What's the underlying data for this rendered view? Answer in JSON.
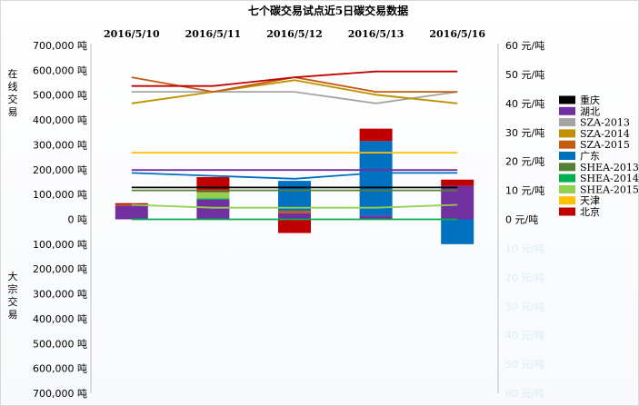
{
  "chart_data": {
    "type": "bar",
    "title": "七个碳交易试点近5日碳交易数据",
    "categories": [
      "2016/5/10",
      "2016/5/11",
      "2016/5/12",
      "2016/5/13",
      "2016/5/16"
    ],
    "y_left": {
      "ticks": [
        "700,000 吨",
        "600,000 吨",
        "500,000 吨",
        "400,000 吨",
        "300,000 吨",
        "200,000 吨",
        "100,000 吨",
        "0 吨",
        "100,000 吨",
        "200,000 吨",
        "300,000 吨",
        "400,000 吨",
        "500,000 吨",
        "600,000 吨",
        "700,000 吨"
      ],
      "range": [
        -700000,
        700000
      ],
      "upper_label": "在线交易",
      "lower_label": "大宗交易"
    },
    "y_right": {
      "ticks": [
        "60 元/吨",
        "50 元/吨",
        "40 元/吨",
        "30 元/吨",
        "20 元/吨",
        "10 元/吨",
        "0 元/吨",
        "10 元/吨",
        "20 元/吨",
        "30 元/吨",
        "40 元/吨",
        "50 元/吨",
        "60 元/吨"
      ],
      "range": [
        -60,
        60
      ]
    },
    "series": [
      {
        "name": "重庆",
        "color": "#000000",
        "bars": [
          0,
          0,
          0,
          0,
          0
        ],
        "prices": [
          11,
          11,
          11,
          11,
          11
        ]
      },
      {
        "name": "湖北",
        "color": "#7030a0",
        "bars": [
          55000,
          80000,
          25000,
          15000,
          135000
        ],
        "prices": [
          17,
          17,
          17,
          17,
          17
        ]
      },
      {
        "name": "SZA-2013",
        "color": "#a5a5a5",
        "bars": [
          0,
          0,
          0,
          0,
          0
        ],
        "prices": [
          44,
          44,
          44,
          40,
          44
        ]
      },
      {
        "name": "SZA-2014",
        "color": "#bf9000",
        "bars": [
          0,
          0,
          0,
          0,
          0
        ],
        "prices": [
          40,
          44,
          48,
          43,
          40
        ]
      },
      {
        "name": "SZA-2015",
        "color": "#c55a11",
        "bars": [
          5000,
          0,
          10000,
          0,
          0
        ],
        "prices": [
          49,
          44,
          49,
          44,
          44
        ]
      },
      {
        "name": "广东",
        "color": "#0070c0",
        "bars": [
          0,
          0,
          120000,
          300000,
          -100000
        ],
        "prices": [
          16,
          15,
          14,
          16,
          16
        ]
      },
      {
        "name": "SHEA-2013",
        "color": "#548235",
        "bars": [
          0,
          0,
          0,
          0,
          0
        ],
        "prices": [
          10,
          10,
          10,
          10,
          10
        ]
      },
      {
        "name": "SHEA-2014",
        "color": "#00b050",
        "bars": [
          0,
          5000,
          0,
          0,
          0
        ],
        "prices": [
          0,
          0,
          0,
          0,
          0
        ]
      },
      {
        "name": "SHEA-2015",
        "color": "#92d050",
        "bars": [
          0,
          25000,
          0,
          0,
          0
        ],
        "prices": [
          5,
          4,
          4,
          4,
          5
        ]
      },
      {
        "name": "天津",
        "color": "#ffc000",
        "bars": [
          0,
          0,
          0,
          0,
          0
        ],
        "prices": [
          23,
          23,
          23,
          23,
          23
        ]
      },
      {
        "name": "北京",
        "color": "#c00000",
        "bars": [
          5000,
          60000,
          -55000,
          50000,
          25000
        ],
        "prices": [
          46,
          46,
          49,
          51,
          51
        ]
      }
    ],
    "legend_position": "right"
  }
}
